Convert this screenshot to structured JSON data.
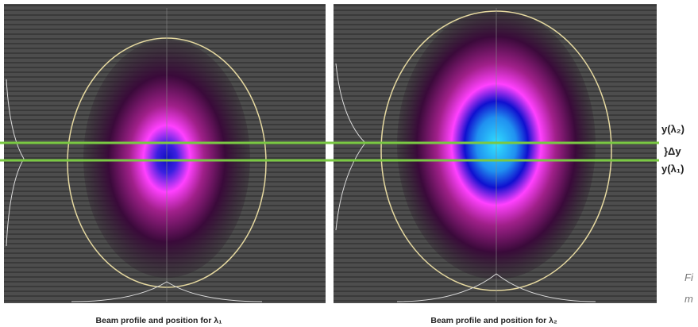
{
  "labels": {
    "y_lambda2": "y(λ₂)",
    "delta_y": "}Δy",
    "y_lambda1": "y(λ₁)"
  },
  "captions": [
    "Beam profile and position for λ₁",
    "Beam profile and position for λ₂"
  ],
  "side_text": [
    "Fi",
    "m"
  ]
}
